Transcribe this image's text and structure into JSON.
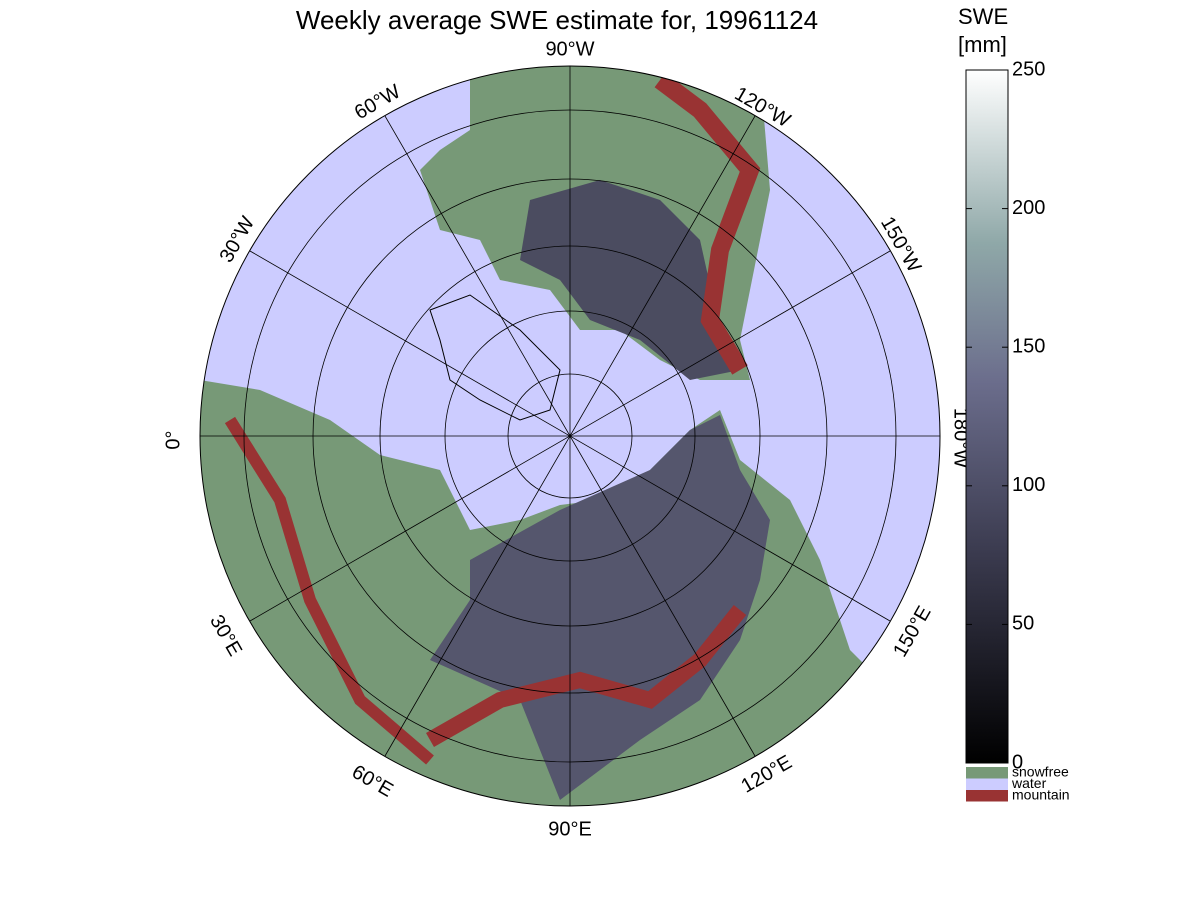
{
  "title": "Weekly average SWE estimate for, 19961124",
  "map": {
    "longitude_labels": [
      "90°W",
      "60°W",
      "120°W",
      "30°W",
      "150°W",
      "0°",
      "180°W",
      "30°E",
      "150°E",
      "60°E",
      "120°E",
      "90°E"
    ]
  },
  "colorbar": {
    "label": [
      "SWE",
      "[mm]"
    ],
    "range": [
      0,
      250
    ],
    "ticks": [
      0,
      50,
      100,
      150,
      200,
      250
    ],
    "categories": [
      {
        "name": "snowfree",
        "color": "#779977"
      },
      {
        "name": "water",
        "color": "#ccccff"
      },
      {
        "name": "mountain",
        "color": "#993333"
      }
    ]
  }
}
